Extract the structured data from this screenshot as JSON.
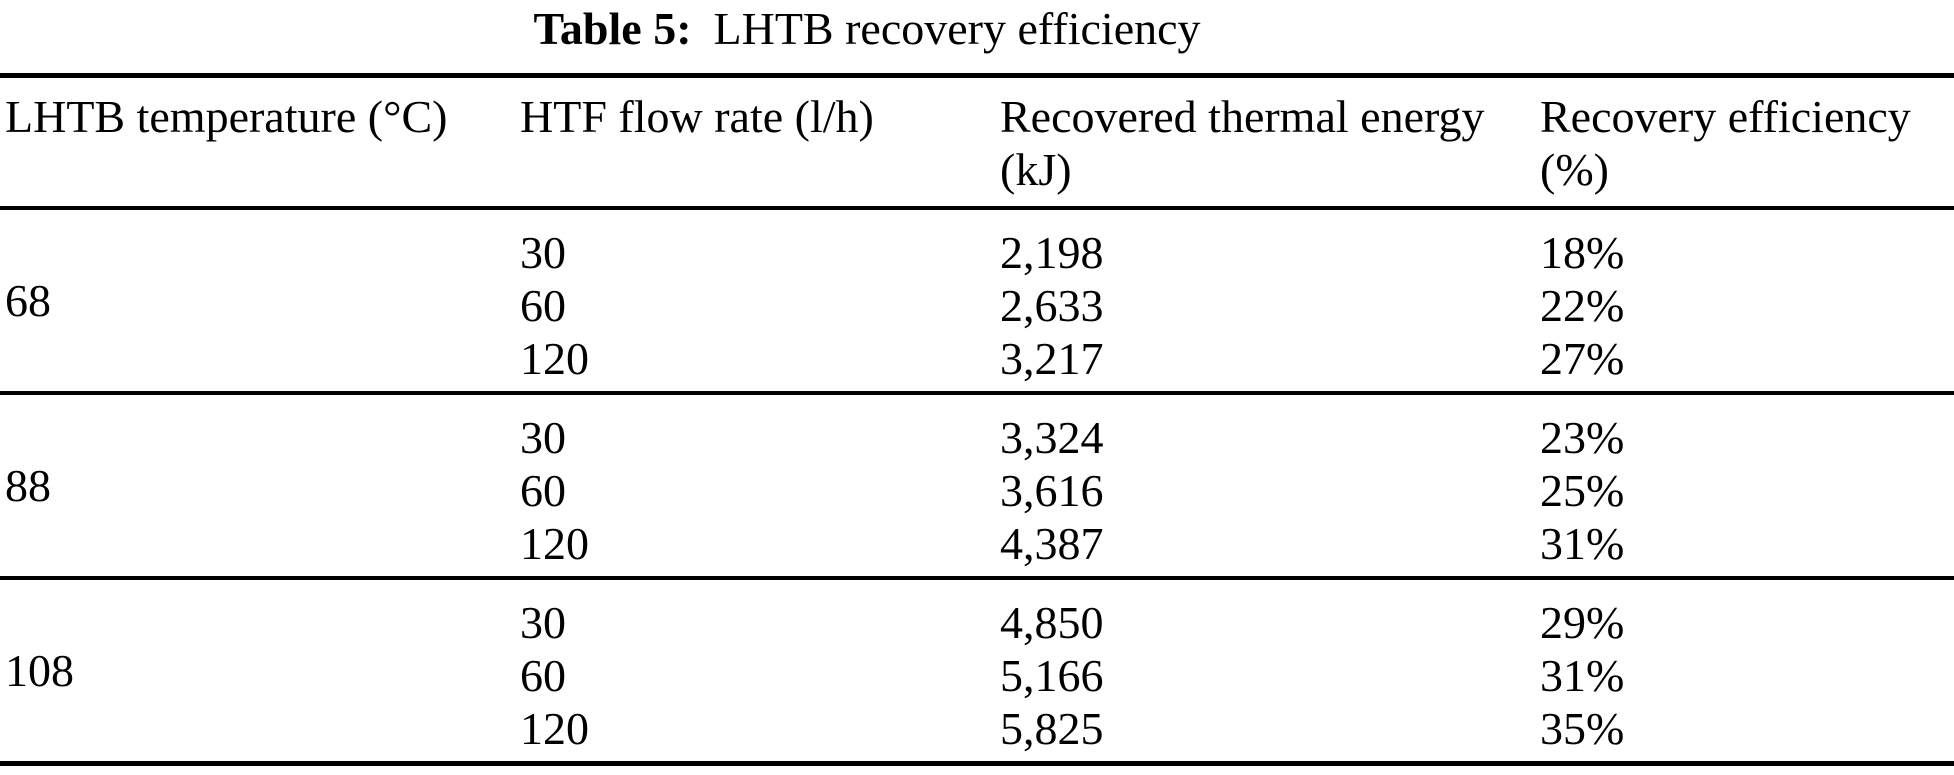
{
  "title": {
    "label": "Table 5:",
    "text": "LHTB recovery efficiency"
  },
  "table": {
    "columns": [
      "LHTB temperature (°C)",
      "HTF flow rate (l/h)",
      "Recovered thermal energy (kJ)",
      "Recovery efficiency (%)"
    ],
    "groups": [
      {
        "temperature": "68",
        "rows": [
          [
            "30",
            "2,198",
            "18%"
          ],
          [
            "60",
            "2,633",
            "22%"
          ],
          [
            "120",
            "3,217",
            "27%"
          ]
        ]
      },
      {
        "temperature": "88",
        "rows": [
          [
            "30",
            "3,324",
            "23%"
          ],
          [
            "60",
            "3,616",
            "25%"
          ],
          [
            "120",
            "4,387",
            "31%"
          ]
        ]
      },
      {
        "temperature": "108",
        "rows": [
          [
            "30",
            "4,850",
            "29%"
          ],
          [
            "60",
            "5,166",
            "31%"
          ],
          [
            "120",
            "5,825",
            "35%"
          ]
        ]
      }
    ]
  }
}
